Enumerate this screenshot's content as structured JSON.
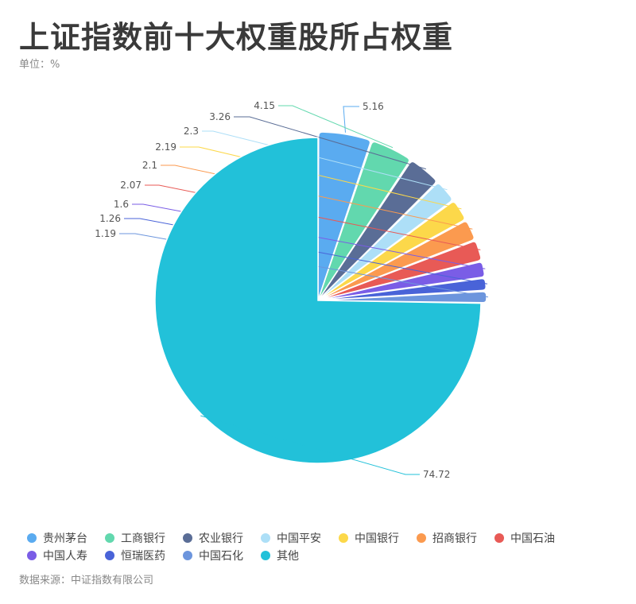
{
  "header": {
    "title": "上证指数前十大权重股所占权重",
    "unit_label": "单位：%"
  },
  "footer": {
    "source": "数据来源：中证指数有限公司"
  },
  "chart_data": {
    "type": "pie",
    "title": "上证指数前十大权重股所占权重",
    "unit": "%",
    "legend_position": "bottom",
    "slices": [
      {
        "name": "贵州茅台",
        "value": 5.16,
        "label": "5.16",
        "color": "#5aabf0"
      },
      {
        "name": "工商银行",
        "value": 4.15,
        "label": "4.15",
        "color": "#62d8ae"
      },
      {
        "name": "农业银行",
        "value": 3.26,
        "label": "3.26",
        "color": "#5a6d96"
      },
      {
        "name": "中国平安",
        "value": 2.3,
        "label": "2.3",
        "color": "#addff7"
      },
      {
        "name": "中国银行",
        "value": 2.19,
        "label": "2.19",
        "color": "#fcd84a"
      },
      {
        "name": "招商银行",
        "value": 2.1,
        "label": "2.1",
        "color": "#fb9a4f"
      },
      {
        "name": "中国石油",
        "value": 2.07,
        "label": "2.07",
        "color": "#e85a56"
      },
      {
        "name": "中国人寿",
        "value": 1.6,
        "label": "1.6",
        "color": "#7a5de6"
      },
      {
        "name": "恒瑞医药",
        "value": 1.26,
        "label": "1.26",
        "color": "#4963d8"
      },
      {
        "name": "中国石化",
        "value": 1.19,
        "label": "1.19",
        "color": "#6c95dd"
      },
      {
        "name": "其他",
        "value": 74.72,
        "label": "74.72",
        "color": "#22c1d9"
      }
    ]
  }
}
